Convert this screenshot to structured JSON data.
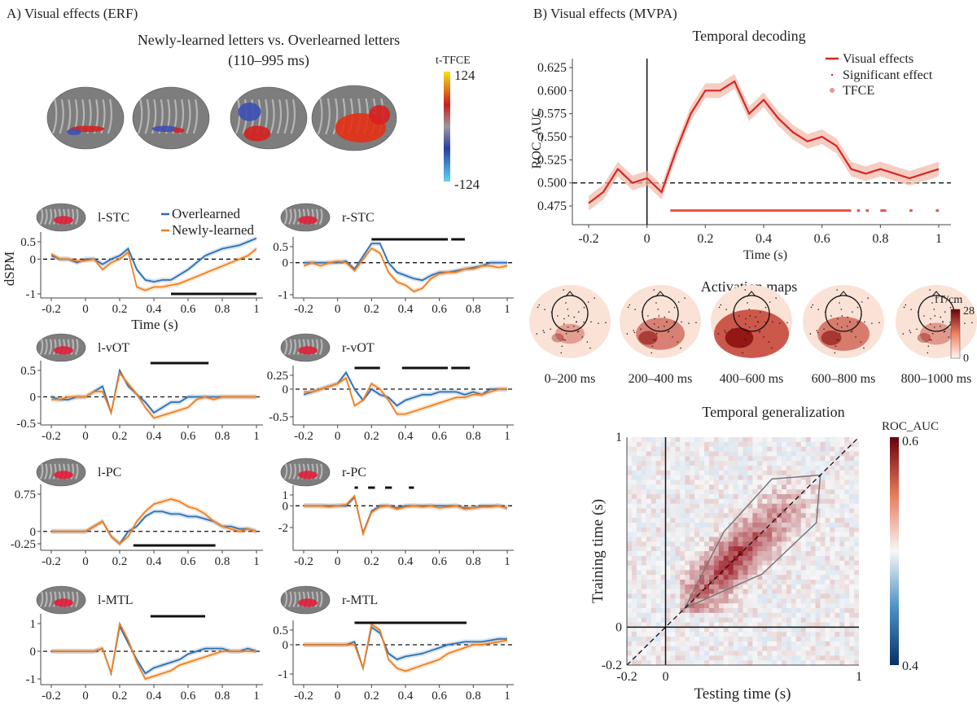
{
  "panel_a": {
    "label": "A)  Visual effects (ERF)",
    "title": "Newly-learned letters vs. Overlearned letters",
    "subtitle": "(110–995 ms)",
    "colorbar": {
      "label": "t-TFCE",
      "max": "124",
      "min": "-124"
    },
    "legend": {
      "overlearned": "Overlearned",
      "newly": "Newly-learned"
    },
    "ylabel": "dSPM",
    "xlabel": "Time (s)"
  },
  "panel_b": {
    "label": "B)  Visual effects (MVPA)",
    "topomaps": {
      "title": "Activation maps",
      "unit": "fT/cm",
      "cmax": "28",
      "cmin": "0",
      "labels": [
        "0–200 ms",
        "200–400 ms",
        "400–600 ms",
        "600–800 ms",
        "800–1000 ms"
      ],
      "intensity": [
        0.25,
        0.55,
        0.95,
        0.6,
        0.3
      ]
    }
  },
  "colors": {
    "overlearned": "#2b6fb5",
    "newly": "#f07f1e",
    "decoding": "#d62728",
    "decoding_band": "#f2b8a6",
    "sig": "#111111"
  },
  "chart_data": [
    {
      "type": "line",
      "id": "l-STC",
      "title": "l-STC",
      "xticks": [
        "-0.2",
        "0",
        "0.2",
        "0.4",
        "0.6",
        "0.8",
        "1"
      ],
      "yticks": [
        0.5,
        0,
        -1
      ],
      "ytick_labels": [
        "0.5",
        "0",
        "-1"
      ],
      "x": [
        -0.2,
        -0.15,
        -0.1,
        -0.05,
        0,
        0.05,
        0.1,
        0.15,
        0.2,
        0.25,
        0.3,
        0.35,
        0.4,
        0.45,
        0.5,
        0.55,
        0.6,
        0.65,
        0.7,
        0.75,
        0.8,
        0.85,
        0.9,
        0.95,
        1
      ],
      "series": [
        {
          "name": "Overlearned",
          "values": [
            0.1,
            0,
            0,
            -0.1,
            0,
            0,
            -0.15,
            0,
            0.1,
            0.3,
            -0.3,
            -0.6,
            -0.65,
            -0.6,
            -0.6,
            -0.45,
            -0.3,
            -0.1,
            0.1,
            0.2,
            0.3,
            0.35,
            0.4,
            0.5,
            0.6
          ]
        },
        {
          "name": "Newly-learned",
          "values": [
            0.15,
            0,
            0,
            -0.05,
            -0.05,
            0,
            -0.3,
            -0.1,
            0,
            0.2,
            -0.8,
            -0.9,
            -0.8,
            -0.8,
            -0.75,
            -0.7,
            -0.6,
            -0.5,
            -0.4,
            -0.3,
            -0.2,
            -0.1,
            0,
            0.1,
            0.3
          ]
        }
      ],
      "significant": [
        [
          0.5,
          1
        ]
      ]
    },
    {
      "type": "line",
      "id": "r-STC",
      "title": "r-STC",
      "xticks": [
        "-0.2",
        "0",
        "0.2",
        "0.4",
        "0.6",
        "0.8",
        "1"
      ],
      "yticks": [
        0.5,
        0,
        -1
      ],
      "ytick_labels": [
        "0.5",
        "0",
        "-1"
      ],
      "x": [
        -0.2,
        -0.15,
        -0.1,
        -0.05,
        0,
        0.05,
        0.1,
        0.15,
        0.2,
        0.25,
        0.3,
        0.35,
        0.4,
        0.45,
        0.5,
        0.55,
        0.6,
        0.65,
        0.7,
        0.75,
        0.8,
        0.85,
        0.9,
        0.95,
        1
      ],
      "series": [
        {
          "name": "Overlearned",
          "values": [
            0,
            0,
            0,
            0,
            0,
            0.05,
            -0.2,
            0.2,
            0.6,
            0.6,
            0,
            -0.3,
            -0.4,
            -0.5,
            -0.55,
            -0.4,
            -0.3,
            -0.3,
            -0.25,
            -0.2,
            -0.15,
            -0.1,
            0,
            0,
            0
          ]
        },
        {
          "name": "Newly-learned",
          "values": [
            -0.1,
            0,
            -0.1,
            0,
            0.05,
            0,
            -0.25,
            0.1,
            0.45,
            0.3,
            -0.3,
            -0.6,
            -0.7,
            -0.9,
            -0.8,
            -0.5,
            -0.35,
            -0.3,
            -0.3,
            -0.2,
            -0.2,
            -0.1,
            -0.1,
            -0.15,
            -0.1
          ]
        }
      ],
      "significant": [
        [
          0.2,
          0.65
        ],
        [
          0.67,
          0.75
        ]
      ]
    },
    {
      "type": "line",
      "id": "l-vOT",
      "title": "l-vOT",
      "xticks": [
        "-0.2",
        "0",
        "0.2",
        "0.4",
        "0.6",
        "0.8",
        "1"
      ],
      "yticks": [
        0.5,
        0,
        -0.5
      ],
      "ytick_labels": [
        "0.5",
        "0",
        "-0.5"
      ],
      "x": [
        -0.2,
        -0.15,
        -0.1,
        -0.05,
        0,
        0.05,
        0.1,
        0.15,
        0.2,
        0.25,
        0.3,
        0.35,
        0.4,
        0.45,
        0.5,
        0.55,
        0.6,
        0.65,
        0.7,
        0.75,
        0.8,
        0.85,
        0.9,
        0.95,
        1
      ],
      "series": [
        {
          "name": "Overlearned",
          "values": [
            0,
            -0.05,
            -0.05,
            0,
            0,
            0.1,
            0.2,
            -0.3,
            0.5,
            0.2,
            0.05,
            -0.1,
            -0.3,
            -0.2,
            -0.1,
            -0.1,
            0,
            0,
            0,
            0,
            0,
            0,
            0,
            0,
            0
          ]
        },
        {
          "name": "Newly-learned",
          "values": [
            -0.05,
            -0.05,
            0,
            0,
            0,
            0.1,
            0.1,
            -0.3,
            0.45,
            0.25,
            0.05,
            -0.2,
            -0.4,
            -0.35,
            -0.3,
            -0.25,
            -0.2,
            -0.05,
            0,
            -0.05,
            0,
            0,
            0,
            0,
            0
          ]
        }
      ],
      "significant": [
        [
          0.38,
          0.72
        ]
      ]
    },
    {
      "type": "line",
      "id": "r-vOT",
      "title": "r-vOT",
      "xticks": [
        "-0.2",
        "0",
        "0.2",
        "0.4",
        "0.6",
        "0.8",
        "1"
      ],
      "yticks": [
        0.25,
        0,
        -0.5
      ],
      "ytick_labels": [
        "0.25",
        "0",
        "-0.5"
      ],
      "x": [
        -0.2,
        -0.15,
        -0.1,
        -0.05,
        0,
        0.05,
        0.1,
        0.15,
        0.2,
        0.25,
        0.3,
        0.35,
        0.4,
        0.45,
        0.5,
        0.55,
        0.6,
        0.65,
        0.7,
        0.75,
        0.8,
        0.85,
        0.9,
        0.95,
        1
      ],
      "series": [
        {
          "name": "Overlearned",
          "values": [
            -0.1,
            -0.05,
            0,
            0.05,
            0.1,
            0.3,
            0,
            -0.2,
            0,
            -0.1,
            -0.15,
            -0.3,
            -0.2,
            -0.15,
            -0.1,
            -0.1,
            -0.05,
            -0.05,
            -0.05,
            -0.1,
            -0.05,
            -0.1,
            0,
            0,
            0
          ]
        },
        {
          "name": "Newly-learned",
          "values": [
            -0.05,
            -0.05,
            0,
            0.05,
            0.1,
            0.2,
            -0.3,
            -0.2,
            0.1,
            0,
            -0.2,
            -0.45,
            -0.45,
            -0.4,
            -0.35,
            -0.3,
            -0.25,
            -0.2,
            -0.15,
            -0.15,
            -0.1,
            -0.1,
            -0.05,
            0,
            0
          ]
        }
      ],
      "significant": [
        [
          0.1,
          0.25
        ],
        [
          0.38,
          0.65
        ],
        [
          0.67,
          0.78
        ]
      ]
    },
    {
      "type": "line",
      "id": "l-PC",
      "title": "l-PC",
      "xticks": [
        "-0.2",
        "0",
        "0.2",
        "0.4",
        "0.6",
        "0.8",
        "1"
      ],
      "yticks": [
        0.75,
        0,
        -0.25
      ],
      "ytick_labels": [
        "0.75",
        "0",
        "-0.25"
      ],
      "x": [
        -0.2,
        -0.15,
        -0.1,
        -0.05,
        0,
        0.05,
        0.1,
        0.15,
        0.2,
        0.25,
        0.3,
        0.35,
        0.4,
        0.45,
        0.5,
        0.55,
        0.6,
        0.65,
        0.7,
        0.75,
        0.8,
        0.85,
        0.9,
        0.95,
        1
      ],
      "series": [
        {
          "name": "Overlearned",
          "values": [
            0,
            0,
            0,
            0,
            0,
            0.1,
            0.2,
            -0.1,
            -0.25,
            0,
            0.1,
            0.3,
            0.4,
            0.4,
            0.35,
            0.35,
            0.3,
            0.3,
            0.25,
            0.2,
            0.1,
            0.1,
            0.05,
            0.05,
            0
          ]
        },
        {
          "name": "Newly-learned",
          "values": [
            0,
            0,
            0,
            0,
            0,
            0.1,
            0.2,
            -0.1,
            -0.25,
            -0.1,
            0.2,
            0.4,
            0.55,
            0.6,
            0.65,
            0.6,
            0.5,
            0.45,
            0.35,
            0.2,
            0.1,
            0.05,
            0,
            0.05,
            0
          ]
        }
      ],
      "significant": [
        [
          0.28,
          0.76
        ]
      ]
    },
    {
      "type": "line",
      "id": "r-PC",
      "title": "r-PC",
      "xticks": [
        "-0.2",
        "0",
        "0.2",
        "0.4",
        "0.6",
        "0.8",
        "1"
      ],
      "yticks": [
        1,
        0,
        -2
      ],
      "ytick_labels": [
        "1",
        "0",
        "-2"
      ],
      "x": [
        -0.2,
        -0.15,
        -0.1,
        -0.05,
        0,
        0.05,
        0.1,
        0.15,
        0.2,
        0.25,
        0.3,
        0.35,
        0.4,
        0.45,
        0.5,
        0.55,
        0.6,
        0.65,
        0.7,
        0.75,
        0.8,
        0.85,
        0.9,
        0.95,
        1
      ],
      "series": [
        {
          "name": "Overlearned",
          "values": [
            0,
            0,
            0,
            0,
            0,
            0,
            0.8,
            -2.5,
            -0.5,
            0,
            0,
            -0.2,
            0,
            0,
            0,
            0,
            0,
            0,
            0,
            -0.2,
            -0.2,
            0,
            0,
            0,
            -0.2
          ]
        },
        {
          "name": "Newly-learned",
          "values": [
            0,
            0,
            0,
            -0.1,
            0,
            0.1,
            0.9,
            -2.6,
            -0.6,
            -0.1,
            0,
            -0.3,
            -0.1,
            0,
            -0.1,
            0,
            -0.2,
            -0.1,
            0,
            -0.3,
            -0.2,
            -0.1,
            -0.1,
            0,
            -0.2
          ]
        }
      ],
      "significant": [
        [
          0.1,
          0.12
        ],
        [
          0.18,
          0.22
        ],
        [
          0.28,
          0.32
        ],
        [
          0.42,
          0.45
        ]
      ]
    },
    {
      "type": "line",
      "id": "l-MTL",
      "title": "l-MTL",
      "xticks": [
        "-0.2",
        "0",
        "0.2",
        "0.4",
        "0.6",
        "0.8",
        "1"
      ],
      "yticks": [
        1,
        0,
        -1
      ],
      "ytick_labels": [
        "1",
        "0",
        "-1"
      ],
      "x": [
        -0.2,
        -0.15,
        -0.1,
        -0.05,
        0,
        0.05,
        0.1,
        0.15,
        0.2,
        0.25,
        0.3,
        0.35,
        0.4,
        0.45,
        0.5,
        0.55,
        0.6,
        0.65,
        0.7,
        0.75,
        0.8,
        0.85,
        0.9,
        0.95,
        1
      ],
      "series": [
        {
          "name": "Overlearned",
          "values": [
            0,
            0,
            0,
            0,
            0,
            0,
            0.1,
            -0.8,
            0.9,
            0.3,
            -0.3,
            -0.8,
            -0.6,
            -0.5,
            -0.4,
            -0.3,
            -0.1,
            0,
            0.1,
            0.1,
            0.1,
            0,
            0,
            0.1,
            0
          ]
        },
        {
          "name": "Newly-learned",
          "values": [
            0,
            0,
            0,
            0,
            0,
            0,
            0.1,
            -0.8,
            1,
            0.4,
            -0.4,
            -1,
            -0.9,
            -0.8,
            -0.7,
            -0.5,
            -0.4,
            -0.3,
            -0.2,
            -0.1,
            0,
            0,
            0,
            0,
            0
          ]
        }
      ],
      "significant": [
        [
          0.38,
          0.7
        ]
      ]
    },
    {
      "type": "line",
      "id": "r-MTL",
      "title": "r-MTL",
      "xticks": [
        "-0.2",
        "0",
        "0.2",
        "0.4",
        "0.6",
        "0.8",
        "1"
      ],
      "yticks": [
        0.5,
        0,
        -1
      ],
      "ytick_labels": [
        "0.5",
        "0",
        "-1"
      ],
      "x": [
        -0.2,
        -0.15,
        -0.1,
        -0.05,
        0,
        0.05,
        0.1,
        0.15,
        0.2,
        0.25,
        0.3,
        0.35,
        0.4,
        0.45,
        0.5,
        0.55,
        0.6,
        0.65,
        0.7,
        0.75,
        0.8,
        0.85,
        0.9,
        0.95,
        1
      ],
      "series": [
        {
          "name": "Overlearned",
          "values": [
            0,
            0,
            0,
            0,
            0,
            0,
            0.1,
            -0.8,
            0.6,
            0.4,
            -0.3,
            -0.5,
            -0.4,
            -0.35,
            -0.3,
            -0.2,
            -0.1,
            0,
            0.05,
            0.1,
            0.1,
            0.1,
            0.15,
            0.2,
            0.2
          ]
        },
        {
          "name": "Newly-learned",
          "values": [
            0,
            0,
            0,
            0,
            0,
            0,
            0,
            -0.8,
            0.7,
            0.5,
            -0.5,
            -0.8,
            -0.9,
            -0.8,
            -0.7,
            -0.6,
            -0.5,
            -0.3,
            -0.2,
            -0.1,
            0,
            0,
            0.05,
            0.1,
            0.15
          ]
        }
      ],
      "significant": [
        [
          0.1,
          0.76
        ]
      ]
    },
    {
      "type": "line",
      "id": "temporal-decoding",
      "title": "Temporal decoding",
      "xlabel": "Time (s)",
      "ylabel": "ROC_AUC",
      "xticks": [
        "-0.2",
        "0",
        "0.2",
        "0.4",
        "0.6",
        "0.8",
        "1"
      ],
      "yticks": [
        0.625,
        0.6,
        0.575,
        0.55,
        0.525,
        0.5,
        0.475
      ],
      "ytick_labels": [
        "0.625",
        "0.600",
        "0.575",
        "0.550",
        "0.525",
        "0.500",
        "0.475"
      ],
      "chance": 0.5,
      "legend": [
        "Visual effects",
        "Significant effect",
        "TFCE"
      ],
      "legend_position": "top-right",
      "x": [
        -0.2,
        -0.15,
        -0.1,
        -0.05,
        0,
        0.05,
        0.1,
        0.15,
        0.2,
        0.25,
        0.3,
        0.35,
        0.4,
        0.45,
        0.5,
        0.55,
        0.6,
        0.65,
        0.7,
        0.75,
        0.8,
        0.85,
        0.9,
        0.95,
        1
      ],
      "series": [
        {
          "name": "Visual effects",
          "values": [
            0.478,
            0.49,
            0.515,
            0.5,
            0.505,
            0.49,
            0.535,
            0.575,
            0.6,
            0.6,
            0.61,
            0.575,
            0.59,
            0.57,
            0.555,
            0.545,
            0.55,
            0.54,
            0.515,
            0.51,
            0.515,
            0.51,
            0.505,
            0.51,
            0.515
          ]
        }
      ],
      "significant": [
        [
          0.08,
          0.7
        ],
        [
          0.72,
          0.73
        ],
        [
          0.75,
          0.76
        ],
        [
          0.8,
          0.82
        ],
        [
          0.9,
          0.91
        ],
        [
          0.99,
          1
        ]
      ]
    },
    {
      "type": "heatmap",
      "id": "temporal-generalization",
      "title": "Temporal generalization",
      "xlabel": "Testing time (s)",
      "ylabel": "Training time (s)",
      "xticks": [
        "-0.2",
        "0",
        "1"
      ],
      "yticks": [
        "1",
        "0",
        "-0.2"
      ],
      "xlim": [
        -0.2,
        1
      ],
      "ylim": [
        -0.2,
        1
      ],
      "colorbar": {
        "label": "ROC_AUC",
        "max": "0.6",
        "min": "0.4"
      }
    }
  ]
}
